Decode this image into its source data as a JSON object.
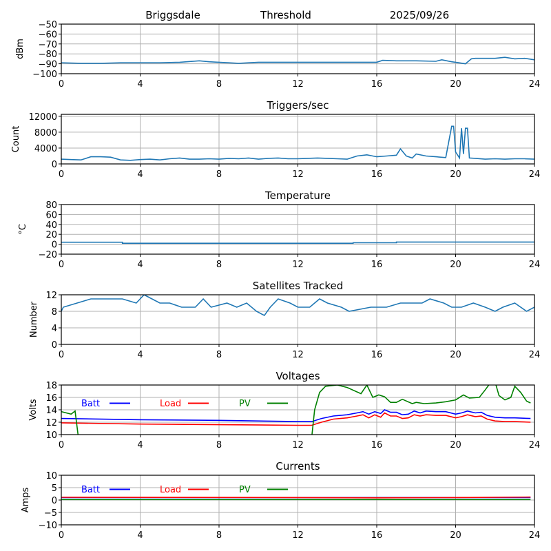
{
  "header": {
    "station": "Briggsdale",
    "mode": "Threshold",
    "date": "2025/09/26"
  },
  "chart_data": [
    {
      "type": "line",
      "title": "",
      "ylabel": "dBm",
      "xlabel": "",
      "xlim": [
        0,
        24
      ],
      "ylim": [
        -100,
        -50
      ],
      "xticks": [
        0,
        4,
        8,
        12,
        16,
        20,
        24
      ],
      "yticks": [
        -100,
        -90,
        -80,
        -70,
        -60,
        -50
      ],
      "ytick_labels": [
        "−100",
        "−90",
        "−80",
        "−70",
        "−60",
        "−50"
      ],
      "grid": true,
      "series": [
        {
          "name": "Threshold",
          "color": "#1f77b4",
          "x": [
            0,
            1,
            2,
            3,
            4,
            5,
            6,
            7,
            7.5,
            8,
            9,
            10,
            11,
            12,
            13,
            14,
            15,
            16,
            16.3,
            17,
            18,
            19,
            19.3,
            19.8,
            20,
            20.5,
            20.8,
            21,
            22,
            22.5,
            23,
            23.5,
            24
          ],
          "y": [
            -89,
            -89.5,
            -89.5,
            -89,
            -89,
            -89,
            -88.5,
            -87,
            -88,
            -88.5,
            -89.5,
            -88.5,
            -88.5,
            -88.5,
            -88.5,
            -88.5,
            -88.5,
            -88.5,
            -86.5,
            -87,
            -87,
            -87.5,
            -86,
            -88,
            -88.5,
            -90,
            -85,
            -84.5,
            -84.5,
            -83.5,
            -85,
            -84.5,
            -86
          ]
        }
      ]
    },
    {
      "type": "line",
      "title": "Triggers/sec",
      "ylabel": "Count",
      "xlim": [
        0,
        24
      ],
      "ylim": [
        0,
        12500
      ],
      "xticks": [
        0,
        4,
        8,
        12,
        16,
        20,
        24
      ],
      "yticks": [
        0,
        4000,
        8000,
        12000
      ],
      "ytick_labels": [
        "0",
        "4000",
        "8000",
        "12000"
      ],
      "grid": true,
      "series": [
        {
          "name": "Triggers",
          "color": "#1f77b4",
          "x": [
            0,
            0.5,
            1,
            1.5,
            2,
            2.5,
            3,
            3.5,
            4,
            4.5,
            5,
            5.5,
            6,
            6.5,
            7,
            7.5,
            8,
            8.5,
            9,
            9.5,
            10,
            10.5,
            11,
            11.5,
            12,
            12.5,
            13,
            13.5,
            14,
            14.5,
            15,
            15.5,
            16,
            16.5,
            17,
            17.2,
            17.5,
            17.8,
            18,
            18.5,
            19,
            19.5,
            19.8,
            19.9,
            20,
            20.2,
            20.3,
            20.4,
            20.5,
            20.6,
            20.7,
            21,
            21.5,
            22,
            22.5,
            23,
            23.5,
            24
          ],
          "y": [
            1200,
            1100,
            1000,
            1800,
            1800,
            1700,
            1000,
            900,
            1100,
            1200,
            1000,
            1300,
            1500,
            1200,
            1200,
            1300,
            1200,
            1400,
            1300,
            1500,
            1200,
            1400,
            1500,
            1300,
            1300,
            1400,
            1500,
            1400,
            1300,
            1200,
            2000,
            2300,
            1800,
            2000,
            2200,
            3800,
            2000,
            1500,
            2500,
            2000,
            1800,
            1600,
            9500,
            9500,
            3000,
            1500,
            9000,
            2500,
            9000,
            9000,
            1500,
            1400,
            1200,
            1300,
            1200,
            1300,
            1300,
            1200
          ]
        }
      ]
    },
    {
      "type": "line",
      "title": "Temperature",
      "ylabel": "°C",
      "xlim": [
        0,
        24
      ],
      "ylim": [
        -20,
        80
      ],
      "xticks": [
        0,
        4,
        8,
        12,
        16,
        20,
        24
      ],
      "yticks": [
        -20,
        0,
        20,
        40,
        60,
        80
      ],
      "ytick_labels": [
        "−20",
        "0",
        "20",
        "40",
        "60",
        "80"
      ],
      "grid": true,
      "series": [
        {
          "name": "Temperature",
          "color": "#1f77b4",
          "x": [
            0,
            3.1,
            3.1,
            14.8,
            14.8,
            17,
            17,
            24
          ],
          "y": [
            4,
            4,
            2,
            2,
            3,
            3,
            4.5,
            4.5
          ]
        }
      ]
    },
    {
      "type": "line",
      "title": "Satellites Tracked",
      "ylabel": "Number",
      "xlim": [
        0,
        24
      ],
      "ylim": [
        0,
        12
      ],
      "xticks": [
        0,
        4,
        8,
        12,
        16,
        20,
        24
      ],
      "yticks": [
        0,
        4,
        8,
        12
      ],
      "ytick_labels": [
        "0",
        "4",
        "8",
        "12"
      ],
      "grid": true,
      "series": [
        {
          "name": "Satellites",
          "color": "#1f77b4",
          "x": [
            0,
            0.1,
            0.8,
            1.5,
            2.5,
            3.1,
            3.8,
            4,
            4.2,
            4.6,
            5,
            5.5,
            6.1,
            6.8,
            7.2,
            7.6,
            8.4,
            8.9,
            9.4,
            9.9,
            10.3,
            10.6,
            11,
            11.6,
            12,
            12.6,
            13.1,
            13.5,
            14.2,
            14.6,
            15.7,
            16.5,
            17.2,
            18.3,
            18.7,
            19.4,
            19.8,
            20.3,
            20.9,
            21.5,
            22,
            22.4,
            23,
            23.6,
            24
          ],
          "y": [
            8,
            9,
            10,
            11,
            11,
            11,
            10,
            11,
            12,
            11,
            10,
            10,
            9,
            9,
            11,
            9,
            10,
            9,
            10,
            8,
            7,
            9,
            11,
            10,
            9,
            9,
            11,
            10,
            9,
            8,
            9,
            9,
            10,
            10,
            11,
            10,
            9,
            9,
            10,
            9,
            8,
            9,
            10,
            8,
            9
          ]
        }
      ]
    },
    {
      "type": "line",
      "title": "Voltages",
      "ylabel": "Volts",
      "xlim": [
        0,
        24
      ],
      "ylim": [
        10,
        18
      ],
      "xticks": [
        0,
        4,
        8,
        12,
        16,
        20,
        24
      ],
      "yticks": [
        10,
        12,
        14,
        16,
        18
      ],
      "ytick_labels": [
        "10",
        "12",
        "14",
        "16",
        "18"
      ],
      "grid": true,
      "legend": {
        "placement": "top-inline",
        "entries": [
          "Batt",
          "Load",
          "PV"
        ]
      },
      "series": [
        {
          "name": "Batt",
          "color": "#0000ff",
          "x": [
            0,
            4,
            8,
            12,
            12.7,
            13.2,
            13.8,
            14.5,
            15,
            15.3,
            15.6,
            15.9,
            16.2,
            16.4,
            16.7,
            17,
            17.3,
            17.6,
            17.9,
            18.2,
            18.5,
            19,
            19.5,
            20,
            20.3,
            20.6,
            21,
            21.3,
            21.6,
            22,
            22.5,
            23,
            23.8
          ],
          "y": [
            12.6,
            12.4,
            12.3,
            12.1,
            12.1,
            12.6,
            13.0,
            13.2,
            13.5,
            13.7,
            13.3,
            13.7,
            13.4,
            14.0,
            13.6,
            13.6,
            13.2,
            13.3,
            13.8,
            13.5,
            13.8,
            13.7,
            13.7,
            13.3,
            13.5,
            13.8,
            13.5,
            13.6,
            13.1,
            12.8,
            12.7,
            12.7,
            12.6
          ]
        },
        {
          "name": "Load",
          "color": "#ff0000",
          "x": [
            0,
            4,
            8,
            12,
            12.7,
            13.2,
            13.8,
            14.5,
            15,
            15.3,
            15.6,
            15.9,
            16.2,
            16.4,
            16.7,
            17,
            17.3,
            17.6,
            17.9,
            18.2,
            18.5,
            19,
            19.5,
            20,
            20.3,
            20.6,
            21,
            21.3,
            21.6,
            22,
            22.5,
            23,
            23.8
          ],
          "y": [
            11.9,
            11.7,
            11.6,
            11.5,
            11.5,
            12.0,
            12.5,
            12.7,
            13.0,
            13.2,
            12.7,
            13.2,
            12.8,
            13.5,
            13.0,
            13.0,
            12.6,
            12.7,
            13.2,
            13.0,
            13.2,
            13.1,
            13.1,
            12.7,
            12.9,
            13.2,
            12.9,
            13.0,
            12.5,
            12.2,
            12.1,
            12.1,
            12.0
          ]
        },
        {
          "name": "PV",
          "color": "#008000",
          "x": [
            0,
            0.5,
            0.7,
            0.85,
            0.85,
            12.7,
            12.85,
            13.1,
            13.4,
            14,
            14.5,
            15.2,
            15.5,
            15.8,
            16.1,
            16.4,
            16.7,
            17,
            17.3,
            17.8,
            18,
            18.4,
            19,
            19.5,
            20,
            20.4,
            20.7,
            21.2,
            21.5,
            21.8,
            22,
            22.2,
            22.5,
            22.8,
            23,
            23.3,
            23.6,
            23.8
          ],
          "y": [
            13.7,
            13.3,
            13.8,
            10,
            9.5,
            9.5,
            14,
            16.8,
            17.8,
            18.0,
            17.6,
            16.6,
            18,
            16,
            16.4,
            16.1,
            15.2,
            15.2,
            15.7,
            15.0,
            15.2,
            15.0,
            15.1,
            15.3,
            15.6,
            16.4,
            15.9,
            16.0,
            17.2,
            18.5,
            18.5,
            16.3,
            15.6,
            16.0,
            17.8,
            16.8,
            15.4,
            15.1
          ]
        }
      ]
    },
    {
      "type": "line",
      "title": "Currents",
      "ylabel": "Amps",
      "xlim": [
        0,
        24
      ],
      "ylim": [
        -10,
        10
      ],
      "xticks": [
        0,
        4,
        8,
        12,
        16,
        20,
        24
      ],
      "yticks": [
        -10,
        -5,
        0,
        5,
        10
      ],
      "ytick_labels": [
        "−10",
        "−5",
        "0",
        "5",
        "10"
      ],
      "grid": true,
      "legend": {
        "placement": "top-inline",
        "entries": [
          "Batt",
          "Load",
          "PV"
        ]
      },
      "series": [
        {
          "name": "Batt",
          "color": "#0000ff",
          "x": [
            0,
            23.8
          ],
          "y": [
            1.0,
            1.0
          ]
        },
        {
          "name": "Load",
          "color": "#ff0000",
          "x": [
            0,
            12,
            16,
            20,
            23.8
          ],
          "y": [
            1.1,
            1.0,
            0.9,
            1.0,
            1.2
          ]
        },
        {
          "name": "PV",
          "color": "#008000",
          "x": [
            0,
            23.8
          ],
          "y": [
            0.2,
            0.2
          ]
        }
      ]
    }
  ]
}
